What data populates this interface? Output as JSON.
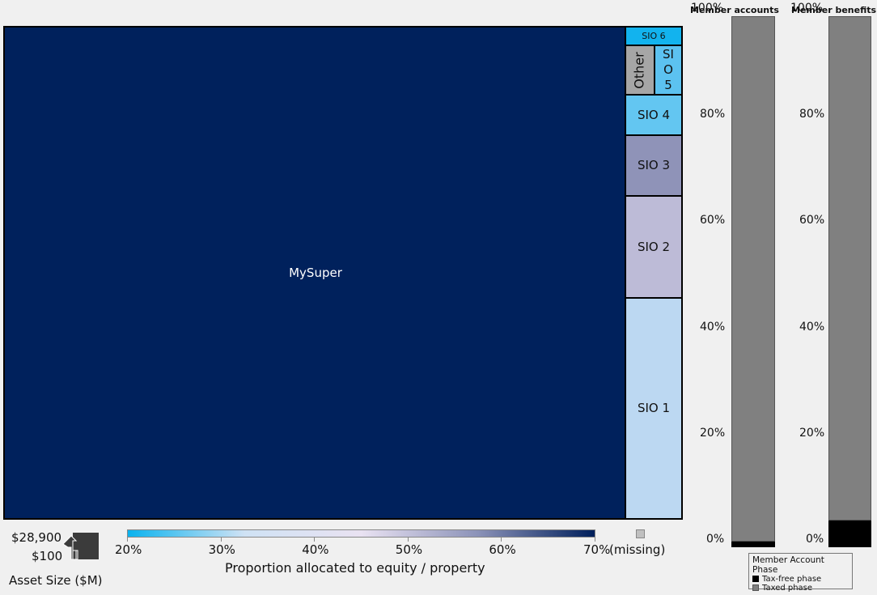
{
  "chart_data": [
    {
      "type": "treemap",
      "color_measure": "Proportion allocated to equity / property",
      "size_measure": "Asset Size ($M)",
      "nodes": [
        {
          "label": "MySuper",
          "value": 24500,
          "equity_pct": 70
        },
        {
          "label": "SIO 1",
          "value": 1100,
          "equity_pct": 36
        },
        {
          "label": "SIO 2",
          "value": 520,
          "equity_pct": 50
        },
        {
          "label": "SIO 3",
          "value": 300,
          "equity_pct": 60
        },
        {
          "label": "SIO 4",
          "value": 200,
          "equity_pct": 25
        },
        {
          "label": "Other",
          "value": 140,
          "equity_pct": null
        },
        {
          "label": "SIO 5",
          "value": 100,
          "equity_pct": 25
        },
        {
          "label": "SIO 6",
          "value": 80,
          "equity_pct": 22
        }
      ],
      "colors": {
        "MySuper": "#00215c",
        "SIO 1": "#bcd8f2",
        "SIO 2": "#bdbbd7",
        "SIO 3": "#8f93b8",
        "SIO 4": "#63c6f1",
        "Other": "#a6a6a6",
        "SIO 5": "#5cc2f0",
        "SIO 6": "#12b3ee"
      },
      "size_legend": {
        "title": "Asset Size ($M)",
        "max_label": "$28,900",
        "min_label": "$100"
      },
      "color_legend": {
        "title": "Proportion allocated to equity / property",
        "ticks": [
          "20%",
          "30%",
          "40%",
          "50%",
          "60%",
          "70%"
        ],
        "missing_label": "(missing)",
        "gradient": [
          "#0ab2ee",
          "#cfe2f4",
          "#e9e2f2",
          "#8b92b8",
          "#001f5b"
        ]
      }
    },
    {
      "type": "bar",
      "stacked": true,
      "percent": true,
      "yticks": [
        "0%",
        "20%",
        "40%",
        "60%",
        "80%",
        "100%"
      ],
      "categories": [
        "Member accounts",
        "Member benefits"
      ],
      "series": [
        {
          "name": "Tax-free phase",
          "values": [
            1,
            5
          ],
          "color": "#000000"
        },
        {
          "name": "Taxed phase",
          "values": [
            99,
            95
          ],
          "color": "#808080"
        }
      ],
      "legend": {
        "title": "Member Account Phase",
        "position": "bottom-right"
      }
    }
  ]
}
